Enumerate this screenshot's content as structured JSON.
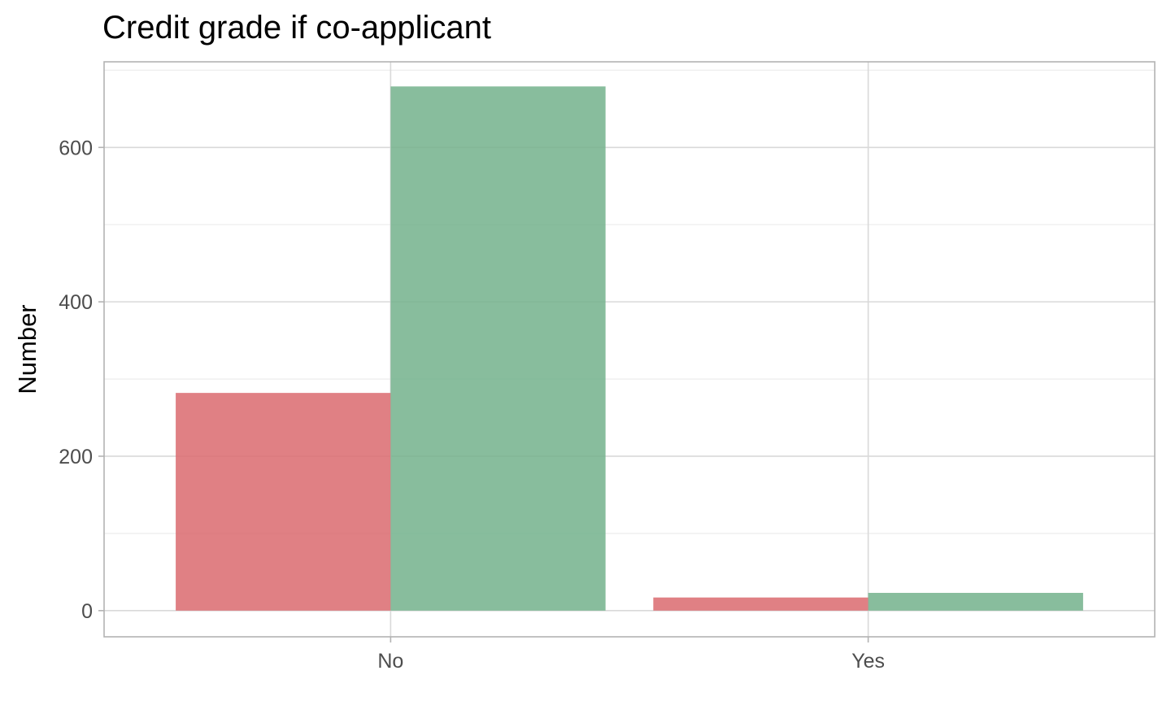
{
  "chart_data": {
    "type": "bar",
    "title": "Credit grade if co-applicant",
    "xlabel": "",
    "ylabel": "Number",
    "categories": [
      "No",
      "Yes"
    ],
    "series": [
      {
        "values": [
          282,
          17
        ],
        "color": "#DB6A6E"
      },
      {
        "values": [
          679,
          23
        ],
        "color": "#73B28C"
      }
    ],
    "ylim": [
      -33.9,
      710.9
    ],
    "y_ticks": [
      0,
      200,
      400,
      600
    ],
    "grid": true,
    "legend": "none"
  }
}
